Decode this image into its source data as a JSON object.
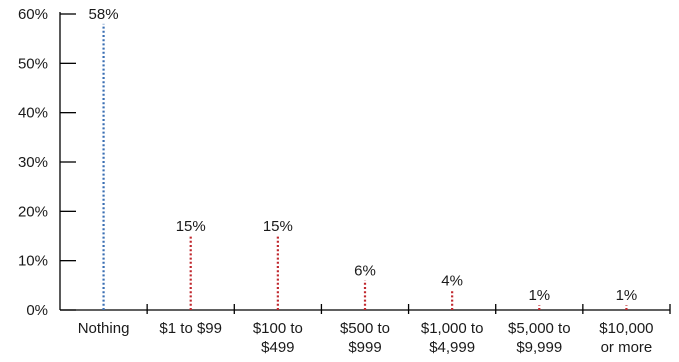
{
  "chart_data": {
    "type": "bar",
    "style": "dotted-lollipop",
    "title": "",
    "xlabel": "",
    "ylabel": "",
    "ylim": [
      0,
      60
    ],
    "y_ticks": [
      "0%",
      "10%",
      "20%",
      "30%",
      "40%",
      "50%",
      "60%"
    ],
    "y_tick_values": [
      0,
      10,
      20,
      30,
      40,
      50,
      60
    ],
    "categories": [
      [
        "Nothing"
      ],
      [
        "$1 to $99"
      ],
      [
        "$100 to",
        "$499"
      ],
      [
        "$500 to",
        "$999"
      ],
      [
        "$1,000 to",
        "$4,999"
      ],
      [
        "$5,000 to",
        "$9,999"
      ],
      [
        "$10,000",
        "or more"
      ]
    ],
    "values": [
      58,
      15,
      15,
      6,
      4,
      1,
      1
    ],
    "data_labels": [
      "58%",
      "15%",
      "15%",
      "6%",
      "4%",
      "1%",
      "1%"
    ],
    "colors": [
      "#3a6fb3",
      "#c0272d",
      "#c0272d",
      "#c0272d",
      "#c0272d",
      "#c0272d",
      "#c0272d"
    ],
    "grid": false,
    "legend": "none"
  }
}
